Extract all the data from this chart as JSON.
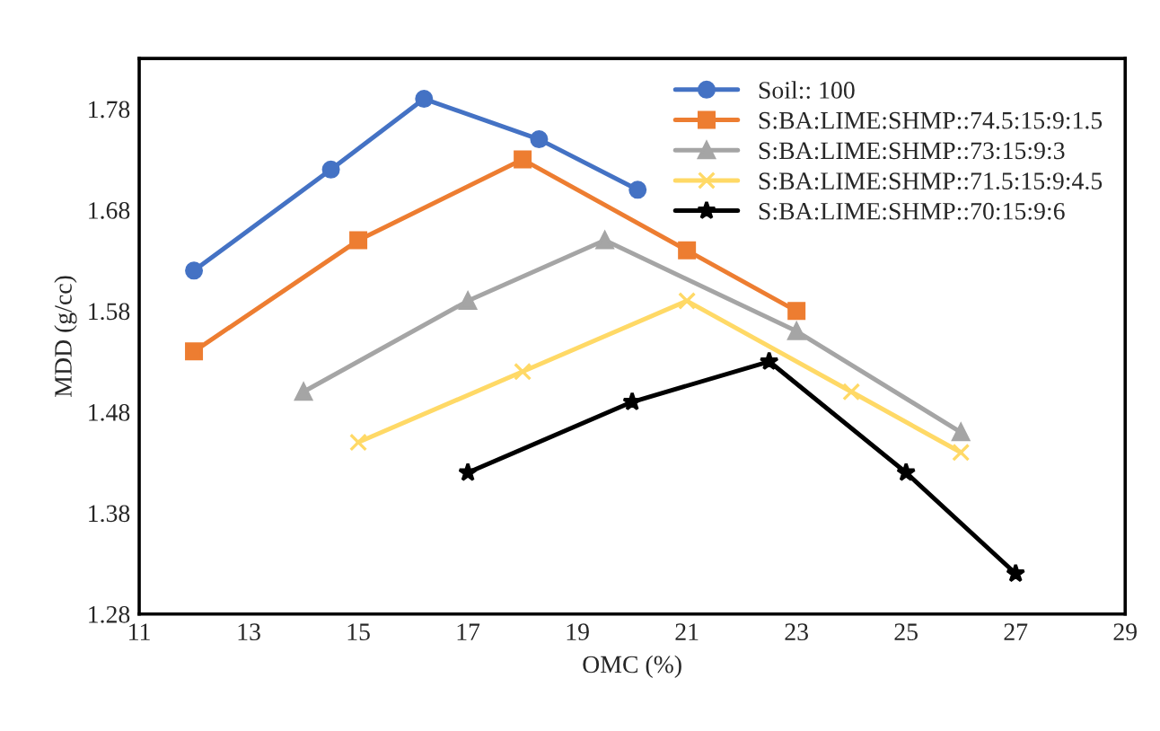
{
  "chart_data": {
    "type": "line",
    "xlabel": "OMC (%)",
    "ylabel": "MDD (g/cc)",
    "xlim": [
      11,
      29
    ],
    "xticks": [
      11,
      13,
      15,
      17,
      19,
      21,
      23,
      25,
      27,
      29
    ],
    "ylim": [
      1.28,
      1.83
    ],
    "yticks": [
      1.28,
      1.38,
      1.48,
      1.58,
      1.68,
      1.78
    ],
    "grid": false,
    "legend": "top right",
    "series": [
      {
        "name": "Soil:: 100",
        "color": "#4472c4",
        "marker": "circle",
        "x": [
          12,
          14.5,
          16.2,
          18.3,
          20.1
        ],
        "values": [
          1.62,
          1.72,
          1.79,
          1.75,
          1.7
        ]
      },
      {
        "name": "S:BA:LIME:SHMP::74.5:15:9:1.5",
        "color": "#ed7d31",
        "marker": "square",
        "x": [
          12,
          15,
          18,
          21,
          23
        ],
        "values": [
          1.54,
          1.65,
          1.73,
          1.64,
          1.58
        ]
      },
      {
        "name": "S:BA:LIME:SHMP::73:15:9:3",
        "color": "#a5a5a5",
        "marker": "triangle",
        "x": [
          14,
          17,
          19.5,
          23,
          26
        ],
        "values": [
          1.5,
          1.59,
          1.65,
          1.56,
          1.46
        ]
      },
      {
        "name": "S:BA:LIME:SHMP::71.5:15:9:4.5",
        "color": "#ffd966",
        "marker": "cross",
        "x": [
          15,
          18,
          21,
          24,
          26
        ],
        "values": [
          1.45,
          1.52,
          1.59,
          1.5,
          1.44
        ]
      },
      {
        "name": "S:BA:LIME:SHMP::70:15:9:6",
        "color": "#000000",
        "marker": "star",
        "x": [
          17,
          20,
          22.5,
          25,
          27
        ],
        "values": [
          1.42,
          1.49,
          1.53,
          1.42,
          1.32
        ]
      }
    ]
  }
}
